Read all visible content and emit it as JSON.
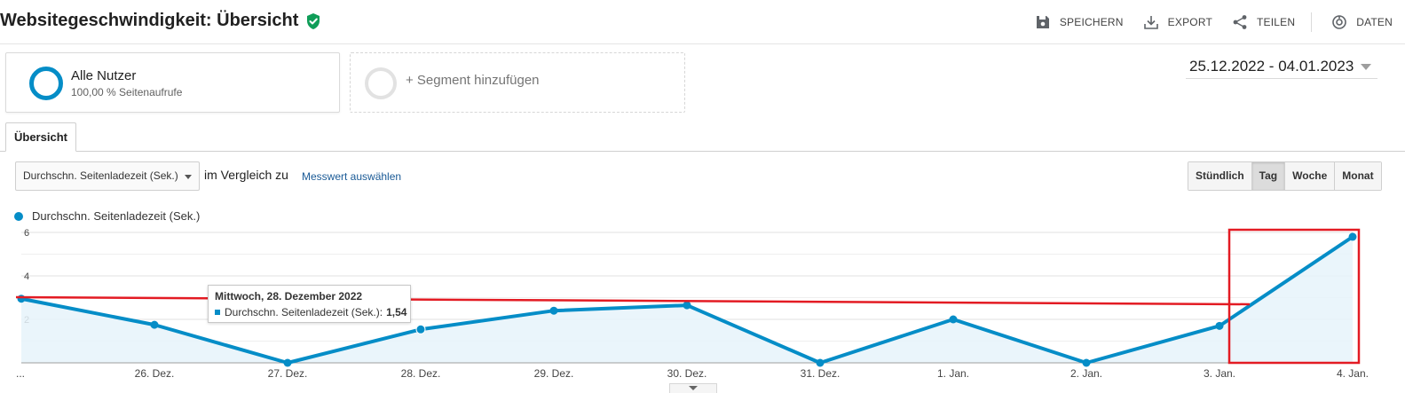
{
  "header": {
    "title": "Websitegeschwindigkeit: Übersicht",
    "verified_icon": "shield-check-icon",
    "actions": [
      {
        "label": "SPEICHERN",
        "icon": "save-icon"
      },
      {
        "label": "EXPORT",
        "icon": "download-icon"
      },
      {
        "label": "TEILEN",
        "icon": "share-icon"
      },
      {
        "label": "DATEN",
        "icon": "insights-icon"
      }
    ]
  },
  "segments": {
    "active": {
      "name": "Alle Nutzer",
      "sub": "100,00 % Seitenaufrufe"
    },
    "add_label": "+ Segment hinzufügen"
  },
  "date_range": "25.12.2022 - 04.01.2023",
  "tabs": [
    {
      "label": "Übersicht"
    }
  ],
  "controls": {
    "metric_selected": "Durchschn. Seitenladezeit (Sek.)",
    "compare_label": "im Vergleich zu",
    "pick_metric": "Messwert auswählen",
    "periods": [
      "Stündlich",
      "Tag",
      "Woche",
      "Monat"
    ],
    "active_period": "Tag"
  },
  "legend": {
    "label": "Durchschn. Seitenladezeit (Sek.)"
  },
  "tooltip": {
    "date": "Mittwoch, 28. Dezember 2022",
    "metric": "Durchschn. Seitenladezeit (Sek.):",
    "value": "1,54"
  },
  "colors": {
    "series": "#058dc7",
    "fill": "#e6f3fa",
    "annotation": "#e31b23"
  },
  "chart_data": {
    "type": "area",
    "categories": [
      "...",
      "26. Dez.",
      "27. Dez.",
      "28. Dez.",
      "29. Dez.",
      "30. Dez.",
      "31. Dez.",
      "1. Jan.",
      "2. Jan.",
      "3. Jan.",
      "4. Jan."
    ],
    "series": [
      {
        "name": "Durchschn. Seitenladezeit (Sek.)",
        "values": [
          2.95,
          1.75,
          0.0,
          1.54,
          2.4,
          2.65,
          0.0,
          2.0,
          0.0,
          1.7,
          5.8
        ]
      }
    ],
    "y_ticks": [
      "2",
      "4",
      "6"
    ],
    "ylim": [
      0,
      6
    ],
    "grid": true
  }
}
